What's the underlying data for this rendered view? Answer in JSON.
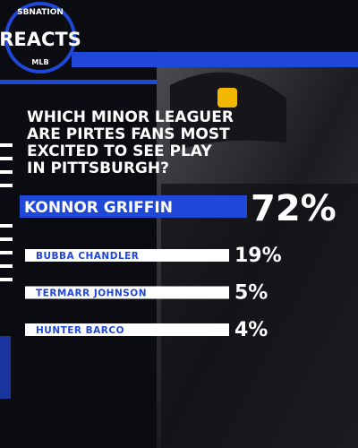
{
  "header": {
    "brand": "SBNATION",
    "title": "REACTS",
    "league": "MLB"
  },
  "question": [
    "WHICH MINOR LEAGUER",
    "ARE PIRTES FANS MOST",
    "EXCITED TO SEE PLAY",
    "IN PITTSBURGH?"
  ],
  "results": [
    {
      "name": "KONNOR GRIFFIN",
      "percent": "72%"
    },
    {
      "name": "BUBBA CHANDLER",
      "percent": "19%"
    },
    {
      "name": "TERMARR JOHNSON",
      "percent": "5%"
    },
    {
      "name": "HUNTER BARCO",
      "percent": "4%"
    }
  ]
}
